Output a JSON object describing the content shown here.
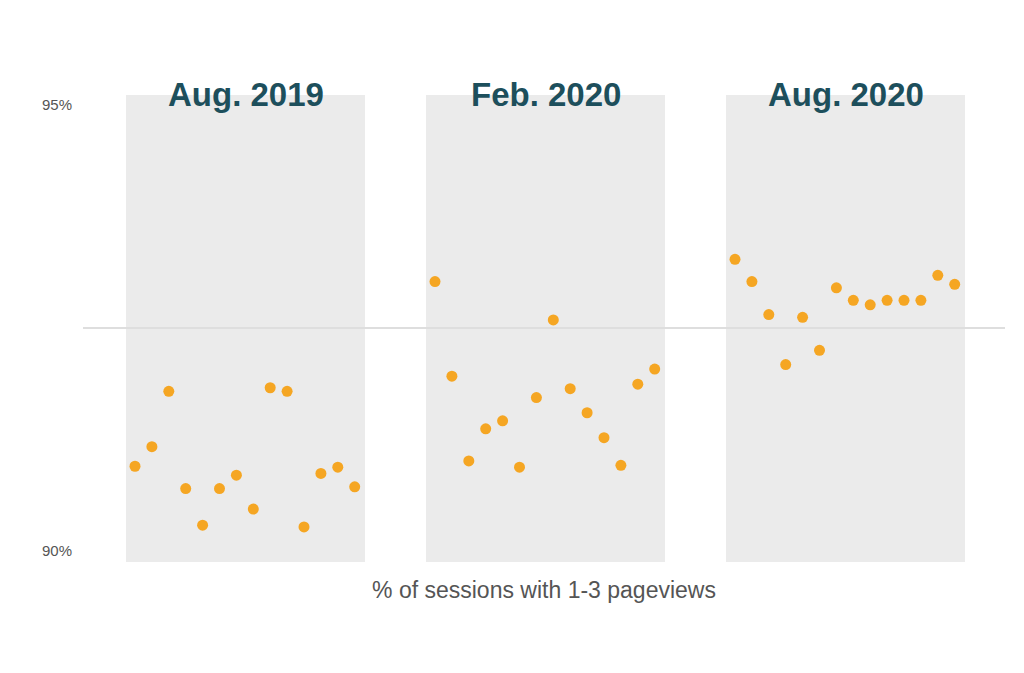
{
  "chart_data": {
    "type": "strip",
    "xlabel": "% of sessions with 1-3 pageviews",
    "color": "#f5a623",
    "grid": true,
    "ylim": [
      90,
      95
    ],
    "yticks": [
      {
        "value": 90,
        "label": "90%"
      },
      {
        "value": 92.5,
        "label": null
      },
      {
        "value": 95,
        "label": "95%"
      }
    ],
    "series": [
      {
        "name": "Aug. 2019",
        "values": [
          90.95,
          91.17,
          91.79,
          90.7,
          90.29,
          90.7,
          90.85,
          90.47,
          91.83,
          91.79,
          90.27,
          90.87,
          90.94,
          90.72
        ]
      },
      {
        "name": "Feb. 2020",
        "values": [
          93.02,
          91.96,
          91.01,
          91.37,
          91.46,
          90.94,
          91.72,
          92.59,
          91.82,
          91.55,
          91.27,
          90.96,
          91.87,
          92.04
        ]
      },
      {
        "name": "Aug. 2020",
        "values": [
          93.27,
          93.02,
          92.65,
          92.09,
          92.62,
          92.25,
          92.95,
          92.81,
          92.76,
          92.81,
          92.81,
          92.81,
          93.09,
          92.99
        ]
      }
    ]
  }
}
